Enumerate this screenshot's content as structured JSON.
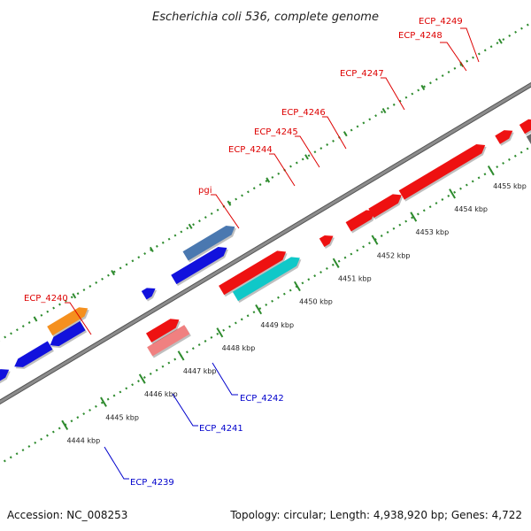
{
  "title": "Escherichia coli 536, complete genome",
  "footer": {
    "accession": "Accession: NC_008253",
    "summary": "Topology: circular; Length: 4,938,920 bp; Genes: 4,722"
  },
  "colors": {
    "backbone": "#8c8c8c",
    "backbone_edge": "#555555",
    "dotted_track": "#2e8b2e",
    "forward_gene": "#ee1111",
    "reverse_gene": "#1111dd",
    "rna_cyan": "#10c8c8",
    "pink": "#f08080",
    "gray_gene": "#666666",
    "steelblue": "#4a78b0",
    "orange": "#f5901e",
    "label_red": "#dd0000",
    "label_blue": "#0000cc"
  },
  "kbp_ticks": [
    {
      "label": "4444 kbp",
      "pos": 4444
    },
    {
      "label": "4445 kbp",
      "pos": 4445
    },
    {
      "label": "4446 kbp",
      "pos": 4446
    },
    {
      "label": "4447 kbp",
      "pos": 4447
    },
    {
      "label": "4448 kbp",
      "pos": 4448
    },
    {
      "label": "4449 kbp",
      "pos": 4449
    },
    {
      "label": "4450 kbp",
      "pos": 4450
    },
    {
      "label": "4451 kbp",
      "pos": 4451
    },
    {
      "label": "4452 kbp",
      "pos": 4452
    },
    {
      "label": "4453 kbp",
      "pos": 4453
    },
    {
      "label": "4454 kbp",
      "pos": 4454
    },
    {
      "label": "4455 kbp",
      "pos": 4455
    }
  ],
  "gene_labels": {
    "ecp_4249": "ECP_4249",
    "ecp_4248": "ECP_4248",
    "ecp_4247": "ECP_4247",
    "ecp_4246": "ECP_4246",
    "ecp_4245": "ECP_4245",
    "ecp_4244": "ECP_4244",
    "pgi": "pgi",
    "ecp_4240": "ECP_4240",
    "ecp_4242": "ECP_4242",
    "ecp_4241": "ECP_4241",
    "ecp_4239": "ECP_4239"
  }
}
